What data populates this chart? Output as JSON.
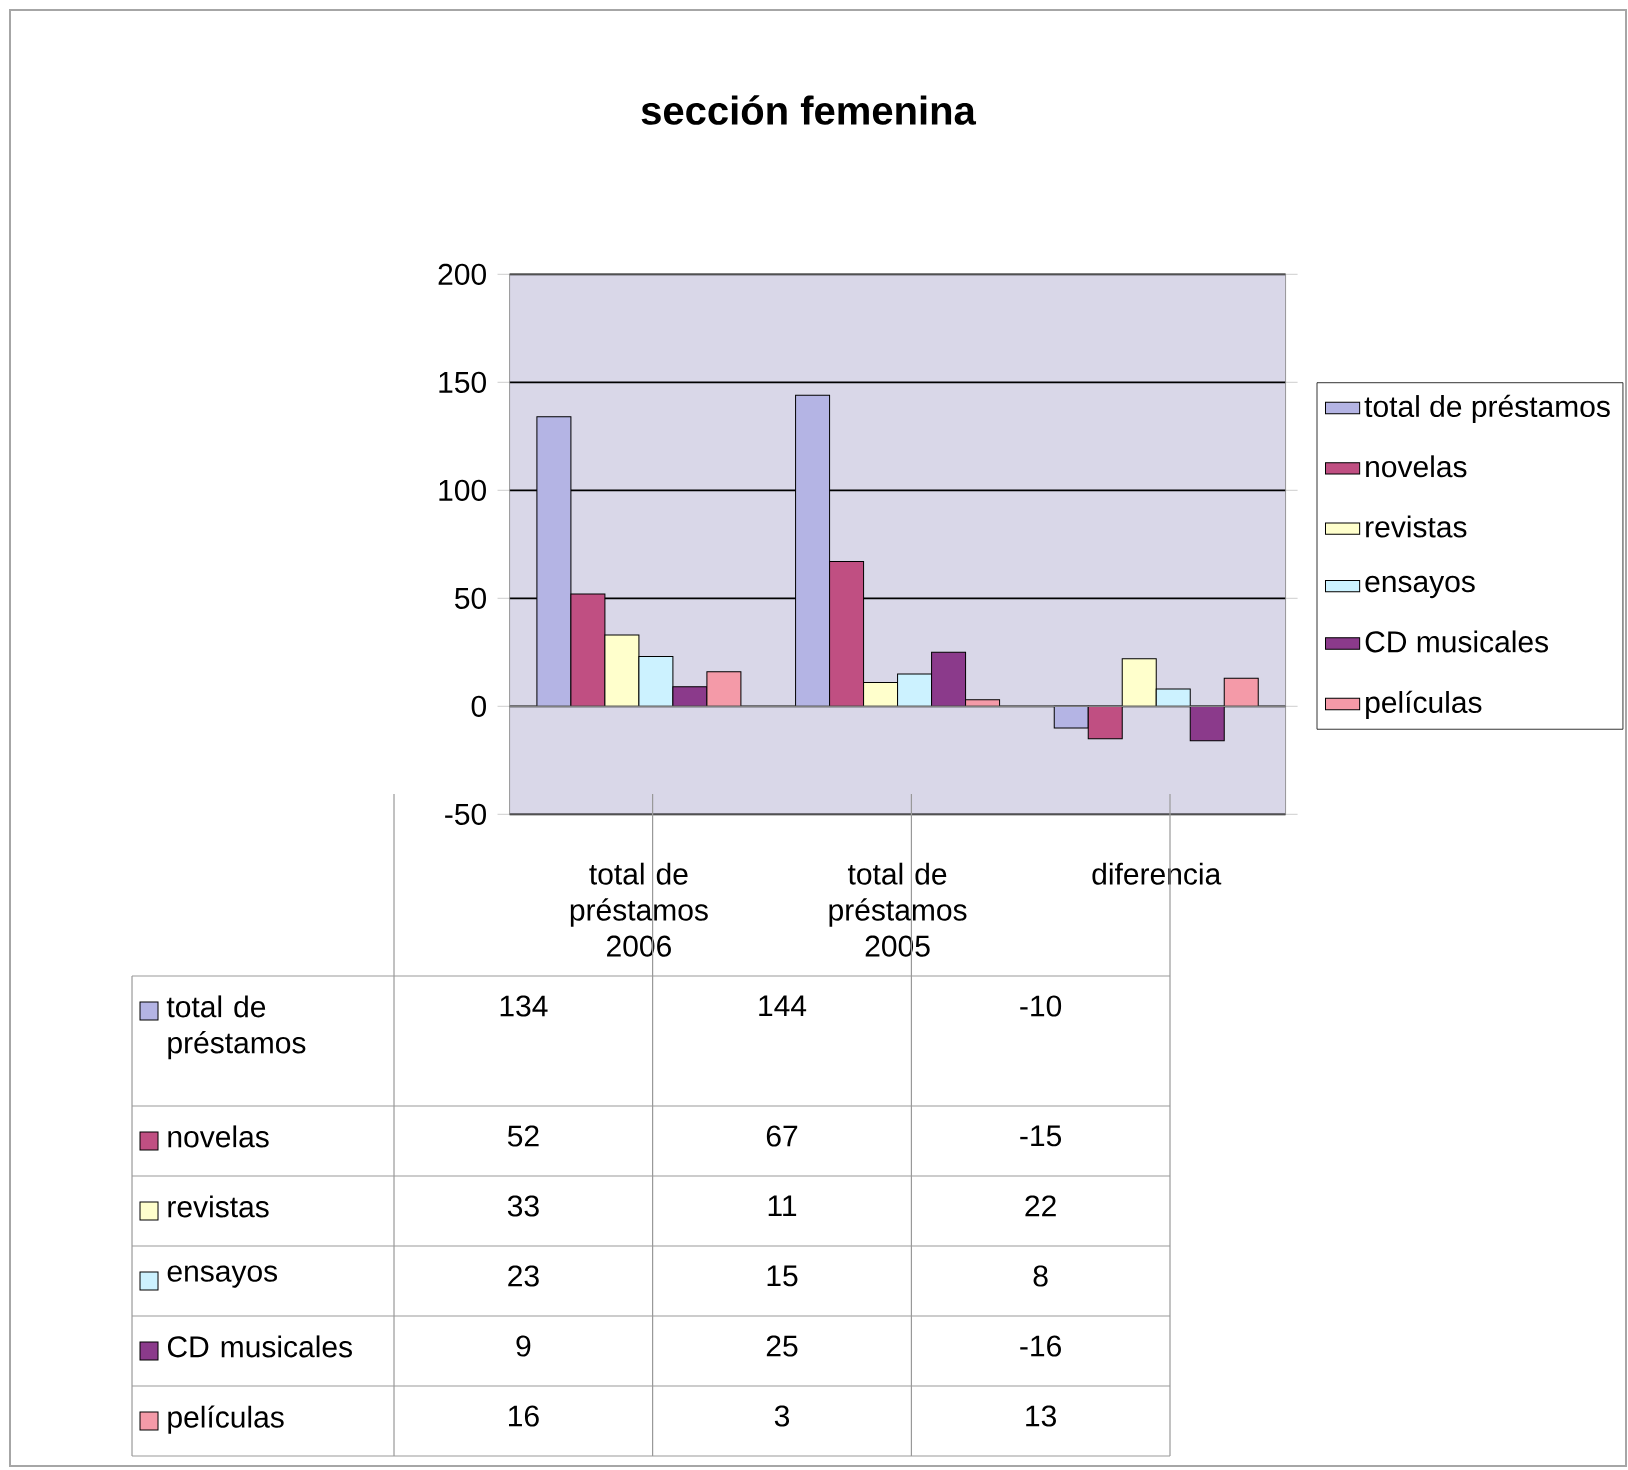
{
  "chart_data": {
    "type": "bar",
    "title": "sección femenina",
    "categories": [
      "total de préstamos 2006",
      "total de préstamos 2005",
      "diferencia"
    ],
    "series": [
      {
        "name": "total de préstamos",
        "color": "#b4b4e4",
        "values": [
          134,
          144,
          -10
        ]
      },
      {
        "name": "novelas",
        "color": "#c04f82",
        "values": [
          52,
          67,
          -15
        ]
      },
      {
        "name": "revistas",
        "color": "#ffffcc",
        "values": [
          33,
          11,
          22
        ]
      },
      {
        "name": "ensayos",
        "color": "#ccf2ff",
        "values": [
          23,
          15,
          8
        ]
      },
      {
        "name": "CD musicales",
        "color": "#8b3a8b",
        "values": [
          9,
          25,
          -16
        ]
      },
      {
        "name": "películas",
        "color": "#f49aa8",
        "values": [
          16,
          3,
          13
        ]
      }
    ],
    "ylim": [
      -50,
      200
    ],
    "yticks": [
      -50,
      0,
      50,
      100,
      150,
      200
    ],
    "grid": "y",
    "legend": "right",
    "data_labels": true
  }
}
